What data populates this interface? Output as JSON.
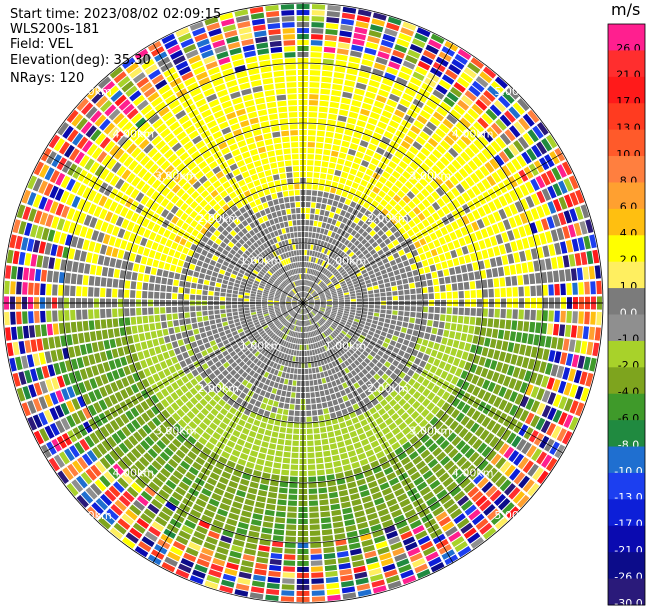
{
  "header": {
    "start_time": "Start time: 2023/08/02 02:09:15",
    "instrument": "WLS200s-181",
    "field": "Field: VEL",
    "elevation": "Elevation(deg): 35.30",
    "nrays": "NRays: 120"
  },
  "colorbar": {
    "unit": "m/s",
    "ticks": [
      "26.0",
      "21.0",
      "17.0",
      "13.0",
      "10.0",
      "8.0",
      "6.0",
      "4.0",
      "2.0",
      "1.0",
      "0.0",
      "-1.0",
      "-2.0",
      "-4.0",
      "-6.0",
      "-8.0",
      "-10.0",
      "-13.0",
      "-17.0",
      "-21.0",
      "-26.0",
      "-30.0"
    ],
    "colors": [
      "#ff1f8f",
      "#ff2e2e",
      "#ff1a1a",
      "#ff3b20",
      "#ff5a2a",
      "#ff7f3f",
      "#ffa030",
      "#ffbf10",
      "#ffff00",
      "#ffef60",
      "#7b7b7b",
      "#8f8f8f",
      "#a8d22a",
      "#7ea41e",
      "#3f9a2a",
      "#208a40",
      "#1f6fd0",
      "#1c3ff0",
      "#0d1fd8",
      "#0a0ab0",
      "#0c0c8a",
      "#2a1a7a"
    ]
  },
  "chart_data": {
    "type": "ppi",
    "title": "Start time: 2023/08/02 02:09:15",
    "field": "VEL",
    "units": "m/s",
    "elevation_deg": 35.3,
    "nrays": 120,
    "range_rings_km": [
      1.0,
      2.0,
      3.0,
      4.0,
      5.0
    ],
    "range_labels": [
      "1.00km",
      "2.00km",
      "3.00km",
      "4.00km",
      "5.00km"
    ],
    "colorbar_ticks": [
      26.0,
      21.0,
      17.0,
      13.0,
      10.0,
      8.0,
      6.0,
      4.0,
      2.0,
      1.0,
      0.0,
      -1.0,
      -2.0,
      -4.0,
      -6.0,
      -8.0,
      -10.0,
      -13.0,
      -17.0,
      -21.0,
      -26.0,
      -30.0
    ],
    "colorbar_min": -30.0,
    "colorbar_max": 30.0,
    "pattern": {
      "inner_km": "near zero (gray)",
      "north_ring_km": "positive ~2 m/s (yellow)",
      "south_ring_km": "negative ~-2 to -6 m/s (green)",
      "outer_km": "noise, all velocities"
    }
  }
}
